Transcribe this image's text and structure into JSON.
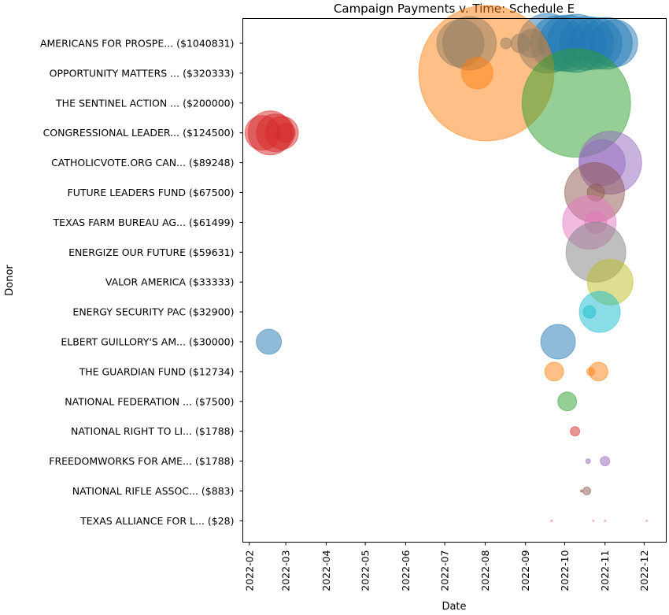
{
  "chart_data": {
    "type": "scatter",
    "title": "Campaign Payments v. Time: Schedule E",
    "xlabel": "Date",
    "ylabel": "Donor",
    "xlim": [
      "2022-01-27",
      "2022-12-18"
    ],
    "x_ticks": [
      "2022-02",
      "2022-03",
      "2022-04",
      "2022-05",
      "2022-06",
      "2022-07",
      "2022-08",
      "2022-09",
      "2022-10",
      "2022-11",
      "2022-12"
    ],
    "grid": false,
    "legend": "none",
    "categories": [
      "AMERICANS FOR PROSPE... ($1040831)",
      "OPPORTUNITY MATTERS ... ($320333)",
      "THE SENTINEL ACTION ... ($200000)",
      "CONGRESSIONAL LEADER... ($124500)",
      "CATHOLICVOTE.ORG CAN... ($89248)",
      "FUTURE LEADERS FUND ($67500)",
      "TEXAS FARM BUREAU AG... ($61499)",
      "ENERGIZE OUR FUTURE ($59631)",
      "VALOR AMERICA ($33333)",
      "ENERGY SECURITY PAC ($32900)",
      "ELBERT GUILLORY'S AM... ($30000)",
      "THE GUARDIAN FUND ($12734)",
      "NATIONAL FEDERATION ... ($7500)",
      "NATIONAL RIGHT TO LI... ($1788)",
      "FREEDOMWORKS FOR AME... ($1788)",
      "NATIONAL RIFLE ASSOC... ($883)",
      "TEXAS ALLIANCE FOR L... ($28)"
    ],
    "colors": [
      "#1f77b4",
      "#ff7f0e",
      "#2ca02c",
      "#d62728",
      "#9467bd",
      "#8c564b",
      "#e377c2",
      "#7f7f7f",
      "#bcbd22",
      "#17becf"
    ],
    "series": [
      {
        "donor_index": 0,
        "color": "#1f77b4",
        "points": [
          {
            "date": "2022-07-13",
            "r": 30
          },
          {
            "date": "2022-07-20",
            "r": 34
          },
          {
            "date": "2022-08-17",
            "r": 7
          },
          {
            "date": "2022-08-28",
            "r": 12
          },
          {
            "date": "2022-09-06",
            "r": 18
          },
          {
            "date": "2022-09-18",
            "r": 38
          },
          {
            "date": "2022-09-26",
            "r": 35
          },
          {
            "date": "2022-10-03",
            "r": 36
          },
          {
            "date": "2022-10-10",
            "r": 37
          },
          {
            "date": "2022-10-18",
            "r": 34
          },
          {
            "date": "2022-10-25",
            "r": 33
          },
          {
            "date": "2022-11-02",
            "r": 33
          },
          {
            "date": "2022-11-08",
            "r": 30
          }
        ]
      },
      {
        "donor_index": 1,
        "color": "#ff7f0e",
        "points": [
          {
            "date": "2022-08-02",
            "r": 86
          },
          {
            "date": "2022-07-26",
            "r": 20
          }
        ]
      },
      {
        "donor_index": 2,
        "color": "#2ca02c",
        "points": [
          {
            "date": "2022-10-10",
            "r": 69
          }
        ]
      },
      {
        "donor_index": 3,
        "color": "#d62728",
        "points": [
          {
            "date": "2022-02-11",
            "r": 22
          },
          {
            "date": "2022-02-17",
            "r": 28
          },
          {
            "date": "2022-02-21",
            "r": 24
          },
          {
            "date": "2022-02-26",
            "r": 21
          },
          {
            "date": "2022-03-01",
            "r": 12
          }
        ]
      },
      {
        "donor_index": 4,
        "color": "#9467bd",
        "points": [
          {
            "date": "2022-11-05",
            "r": 40
          },
          {
            "date": "2022-10-30",
            "r": 29
          }
        ]
      },
      {
        "donor_index": 5,
        "color": "#8c564b",
        "points": [
          {
            "date": "2022-10-24",
            "r": 38
          },
          {
            "date": "2022-10-25",
            "r": 11
          }
        ]
      },
      {
        "donor_index": 6,
        "color": "#e377c2",
        "points": [
          {
            "date": "2022-10-20",
            "r": 34
          },
          {
            "date": "2022-10-25",
            "r": 14
          }
        ]
      },
      {
        "donor_index": 7,
        "color": "#7f7f7f",
        "points": [
          {
            "date": "2022-10-25",
            "r": 38
          }
        ]
      },
      {
        "donor_index": 8,
        "color": "#bcbd22",
        "points": [
          {
            "date": "2022-11-05",
            "r": 29
          }
        ]
      },
      {
        "donor_index": 9,
        "color": "#17becf",
        "points": [
          {
            "date": "2022-10-28",
            "r": 26
          },
          {
            "date": "2022-10-20",
            "r": 8
          }
        ]
      },
      {
        "donor_index": 10,
        "color": "#1f77b4",
        "points": [
          {
            "date": "2022-02-16",
            "r": 16
          },
          {
            "date": "2022-09-26",
            "r": 22
          }
        ]
      },
      {
        "donor_index": 11,
        "color": "#ff7f0e",
        "points": [
          {
            "date": "2022-09-23",
            "r": 12
          },
          {
            "date": "2022-10-27",
            "r": 12
          },
          {
            "date": "2022-10-21",
            "r": 5
          }
        ]
      },
      {
        "donor_index": 12,
        "color": "#2ca02c",
        "points": [
          {
            "date": "2022-10-03",
            "r": 12
          }
        ]
      },
      {
        "donor_index": 13,
        "color": "#d62728",
        "points": [
          {
            "date": "2022-10-09",
            "r": 6
          }
        ]
      },
      {
        "donor_index": 14,
        "color": "#9467bd",
        "points": [
          {
            "date": "2022-10-19",
            "r": 3
          },
          {
            "date": "2022-11-01",
            "r": 6
          }
        ]
      },
      {
        "donor_index": 15,
        "color": "#8c564b",
        "points": [
          {
            "date": "2022-10-14",
            "r": 1.5
          },
          {
            "date": "2022-10-18",
            "r": 5
          }
        ]
      },
      {
        "donor_index": 16,
        "color": "#e377c2",
        "points": [
          {
            "date": "2022-09-21",
            "r": 1.2
          },
          {
            "date": "2022-10-23",
            "r": 1
          },
          {
            "date": "2022-11-01",
            "r": 1
          },
          {
            "date": "2022-12-03",
            "r": 1
          }
        ]
      }
    ]
  }
}
